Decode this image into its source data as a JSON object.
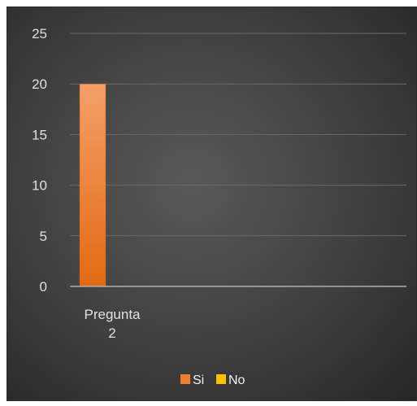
{
  "chart_data": {
    "type": "bar",
    "categories": [
      "Pregunta 2"
    ],
    "category_lines": [
      [
        "Pregunta",
        "2"
      ]
    ],
    "series": [
      {
        "name": "Si",
        "values": [
          20
        ],
        "color": "#ED7D31"
      },
      {
        "name": "No",
        "values": [
          0
        ],
        "color": "#FFC000"
      }
    ],
    "ylim": [
      0,
      25
    ],
    "yticks": [
      "0",
      "5",
      "10",
      "15",
      "20",
      "25"
    ],
    "grid": true,
    "legend": "bottom",
    "title": "",
    "xlabel": "",
    "ylabel": ""
  }
}
